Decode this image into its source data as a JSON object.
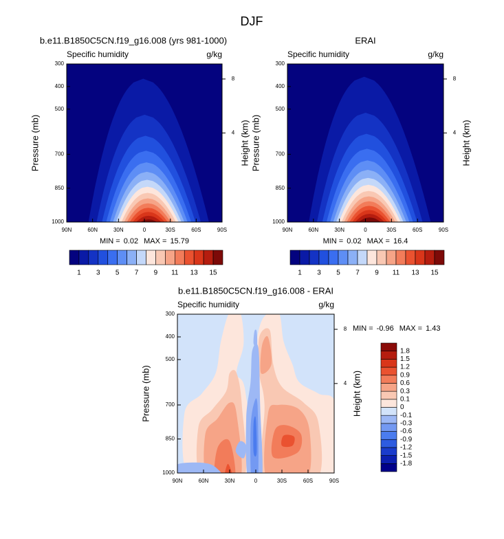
{
  "figure_title": "DJF",
  "chart_data": [
    {
      "type": "contour",
      "title": "b.e11.B1850C5CN.f19_g16.008 (yrs 981-1000)",
      "subtitle_left": "Specific humidity",
      "subtitle_right": "g/kg",
      "ylabel": "Pressure (mb)",
      "y2label": "Height (km)",
      "xlim": [
        90,
        -90
      ],
      "xticks": [
        {
          "value": 90,
          "label": "90N"
        },
        {
          "value": 60,
          "label": "60N"
        },
        {
          "value": 30,
          "label": "30N"
        },
        0,
        {
          "value": -30,
          "label": "30S"
        },
        {
          "value": -60,
          "label": "60S"
        },
        {
          "value": -90,
          "label": "90S"
        }
      ],
      "ylim": [
        1000,
        300
      ],
      "yticks": [
        300,
        400,
        500,
        700,
        850,
        1000
      ],
      "y2lim": [
        0,
        9.6
      ],
      "y2ticks": [
        4,
        8
      ],
      "levels": [
        1,
        2,
        3,
        4,
        5,
        6,
        7,
        8,
        9,
        10,
        11,
        12,
        13,
        14,
        15
      ],
      "colors": [
        "#04037f",
        "#0a1aa6",
        "#1433c4",
        "#2150de",
        "#3a6ef0",
        "#5e8ef5",
        "#8bb0f6",
        "#c4d8f9",
        "#fde6dc",
        "#f9c8b3",
        "#f6a487",
        "#f27c5a",
        "#ea5230",
        "#d9361a",
        "#b51d0f",
        "#7d0a08"
      ],
      "colorbar": "bottom",
      "colorbar_ticks": [
        1,
        3,
        5,
        7,
        9,
        11,
        13,
        15
      ],
      "min_label": "MIN =",
      "min": 0.02,
      "max_label": "MAX =",
      "max": 15.79
    },
    {
      "type": "contour",
      "title": "ERAI",
      "subtitle_left": "Specific humidity",
      "subtitle_right": "g/kg",
      "ylabel": "Pressure (mb)",
      "y2label": "Height (km)",
      "xlim": [
        90,
        -90
      ],
      "xticks": [
        {
          "value": 90,
          "label": "90N"
        },
        {
          "value": 60,
          "label": "60N"
        },
        {
          "value": 30,
          "label": "30N"
        },
        0,
        {
          "value": -30,
          "label": "30S"
        },
        {
          "value": -60,
          "label": "60S"
        },
        {
          "value": -90,
          "label": "90S"
        }
      ],
      "ylim": [
        1000,
        300
      ],
      "yticks": [
        300,
        400,
        500,
        700,
        850,
        1000
      ],
      "y2lim": [
        0,
        9.6
      ],
      "y2ticks": [
        4,
        8
      ],
      "levels": [
        1,
        2,
        3,
        4,
        5,
        6,
        7,
        8,
        9,
        10,
        11,
        12,
        13,
        14,
        15
      ],
      "colors": [
        "#04037f",
        "#0a1aa6",
        "#1433c4",
        "#2150de",
        "#3a6ef0",
        "#5e8ef5",
        "#8bb0f6",
        "#c4d8f9",
        "#fde6dc",
        "#f9c8b3",
        "#f6a487",
        "#f27c5a",
        "#ea5230",
        "#d9361a",
        "#b51d0f",
        "#7d0a08"
      ],
      "colorbar": "bottom",
      "colorbar_ticks": [
        1,
        3,
        5,
        7,
        9,
        11,
        13,
        15
      ],
      "min_label": "MIN =",
      "min": 0.02,
      "max_label": "MAX =",
      "max": 16.4
    },
    {
      "type": "contour",
      "title": "b.e11.B1850C5CN.f19_g16.008 - ERAI",
      "subtitle_left": "Specific humidity",
      "subtitle_right": "g/kg",
      "ylabel": "Pressure (mb)",
      "y2label": "Height (km)",
      "xlim": [
        90,
        -90
      ],
      "xticks": [
        {
          "value": 90,
          "label": "90N"
        },
        {
          "value": 60,
          "label": "60N"
        },
        {
          "value": 30,
          "label": "30N"
        },
        0,
        {
          "value": -30,
          "label": "30S"
        },
        {
          "value": -60,
          "label": "60S"
        },
        {
          "value": -90,
          "label": "90S"
        }
      ],
      "ylim": [
        1000,
        300
      ],
      "yticks": [
        300,
        400,
        500,
        700,
        850,
        1000
      ],
      "y2lim": [
        0,
        9.6
      ],
      "y2ticks": [
        4,
        8
      ],
      "levels": [
        -1.8,
        -1.5,
        -1.2,
        -0.9,
        -0.6,
        -0.3,
        -0.1,
        0,
        0.1,
        0.3,
        0.6,
        0.9,
        1.2,
        1.5,
        1.8
      ],
      "colors": [
        "#00008a",
        "#0b1fb0",
        "#1a3ccc",
        "#2e5ce0",
        "#4b7cee",
        "#7399f2",
        "#9db8f5",
        "#d2e3fa",
        "#fde6dc",
        "#f9c8b3",
        "#f6a487",
        "#f27c5a",
        "#ea5230",
        "#d9361a",
        "#b51d0f",
        "#8a0b08"
      ],
      "colorbar": "right",
      "colorbar_ticks": [
        -1.8,
        -1.5,
        -1.2,
        -0.9,
        -0.6,
        -0.3,
        -0.1,
        0,
        0.1,
        0.3,
        0.6,
        0.9,
        1.2,
        1.5,
        1.8
      ],
      "min_label": "MIN =",
      "min": -0.96,
      "max_label": "MAX =",
      "max": 1.43
    }
  ]
}
